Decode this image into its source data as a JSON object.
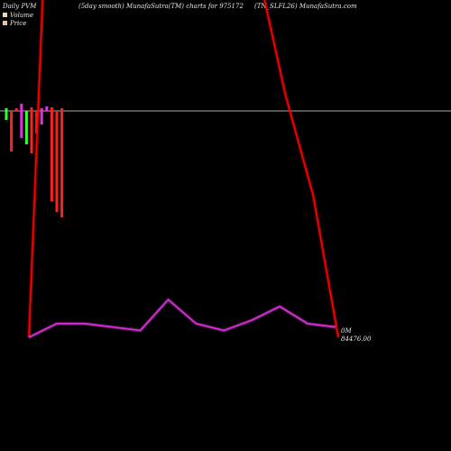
{
  "header": {
    "left": "Daily PVM",
    "center": "(5day smooth) MunafaSutra(TM) charts for 975172",
    "right": "(TN_SLFL26) MunafaSutra.com"
  },
  "legend": [
    {
      "label": "Volume",
      "color": "#e8d8b0"
    },
    {
      "label": "Price",
      "color": "#f4c090"
    }
  ],
  "annotation": {
    "line1": "0M",
    "line2": "84476.00"
  },
  "colors": {
    "background": "#000000",
    "price_line": "#ff0000",
    "volume_line": "#dd33dd",
    "up_bar": "#33ff33",
    "down_bar": "#ff2020",
    "neutral_bar": "#dd33dd",
    "baseline": "#aaaaaa"
  },
  "chart_data": {
    "type": "line",
    "title": "",
    "xlabel": "",
    "ylabel": "",
    "grid": false,
    "legend_placement": "top-left",
    "series": [
      {
        "name": "Price",
        "color": "#ff0000",
        "points": [
          {
            "x": 0,
            "y": 0.0
          },
          {
            "x": 0.5,
            "y": 1.02
          },
          {
            "x": 8.4,
            "y": 1.02
          },
          {
            "x": 9.2,
            "y": 0.72
          },
          {
            "x": 10.2,
            "y": 0.42
          },
          {
            "x": 11.1,
            "y": 0.0
          }
        ]
      },
      {
        "name": "Volume",
        "color": "#dd33dd",
        "points": [
          {
            "x": 0,
            "y": 0.0
          },
          {
            "x": 1,
            "y": 0.04
          },
          {
            "x": 2,
            "y": 0.04
          },
          {
            "x": 3,
            "y": 0.03
          },
          {
            "x": 4,
            "y": 0.02
          },
          {
            "x": 5,
            "y": 0.11
          },
          {
            "x": 6,
            "y": 0.04
          },
          {
            "x": 7,
            "y": 0.02
          },
          {
            "x": 8,
            "y": 0.05
          },
          {
            "x": 9,
            "y": 0.09
          },
          {
            "x": 10,
            "y": 0.04
          },
          {
            "x": 11,
            "y": 0.03
          }
        ]
      }
    ],
    "bars": [
      {
        "x": 0,
        "up": 3,
        "down": 10,
        "dir": "up"
      },
      {
        "x": 1,
        "up": 0,
        "down": 45,
        "dir": "down"
      },
      {
        "x": 2,
        "up": 3,
        "down": 0,
        "dir": "down"
      },
      {
        "x": 3,
        "up": 8,
        "down": 30,
        "dir": "neutral"
      },
      {
        "x": 4,
        "up": 0,
        "down": 37,
        "dir": "up"
      },
      {
        "x": 5,
        "up": 4,
        "down": 47,
        "dir": "down"
      },
      {
        "x": 6,
        "up": 0,
        "down": 25,
        "dir": "down"
      },
      {
        "x": 7,
        "up": 3,
        "down": 15,
        "dir": "neutral"
      },
      {
        "x": 8,
        "up": 5,
        "down": 0,
        "dir": "neutral"
      },
      {
        "x": 9,
        "up": 4,
        "down": 100,
        "dir": "down"
      },
      {
        "x": 10,
        "up": 0,
        "down": 112,
        "dir": "down"
      },
      {
        "x": 11,
        "up": 3,
        "down": 118,
        "dir": "down"
      }
    ]
  }
}
